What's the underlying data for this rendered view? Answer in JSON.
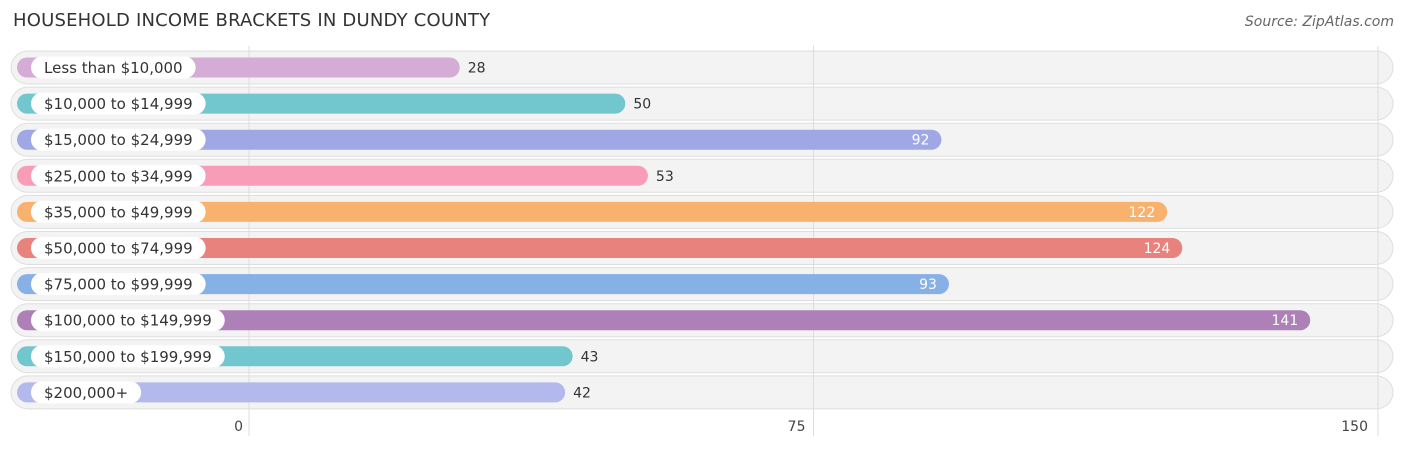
{
  "header": {
    "title": "HOUSEHOLD INCOME BRACKETS IN DUNDY COUNTY",
    "source": "Source: ZipAtlas.com"
  },
  "chart_data": {
    "type": "bar",
    "orientation": "horizontal",
    "title": "HOUSEHOLD INCOME BRACKETS IN DUNDY COUNTY",
    "categories": [
      "Less than $10,000",
      "$10,000 to $14,999",
      "$15,000 to $24,999",
      "$25,000 to $34,999",
      "$35,000 to $49,999",
      "$50,000 to $74,999",
      "$75,000 to $99,999",
      "$100,000 to $149,999",
      "$150,000 to $199,999",
      "$200,000+"
    ],
    "values": [
      28,
      50,
      92,
      53,
      122,
      124,
      93,
      141,
      43,
      42
    ],
    "colors": [
      "#d4acd6",
      "#72c6ce",
      "#9fa8e4",
      "#f89cb8",
      "#f9b26e",
      "#e8827d",
      "#86b0e6",
      "#ae80b8",
      "#72c6ce",
      "#b3b9ec"
    ],
    "xlim": [
      0,
      150
    ],
    "xticks": [
      0,
      75,
      150
    ],
    "grid": true
  }
}
